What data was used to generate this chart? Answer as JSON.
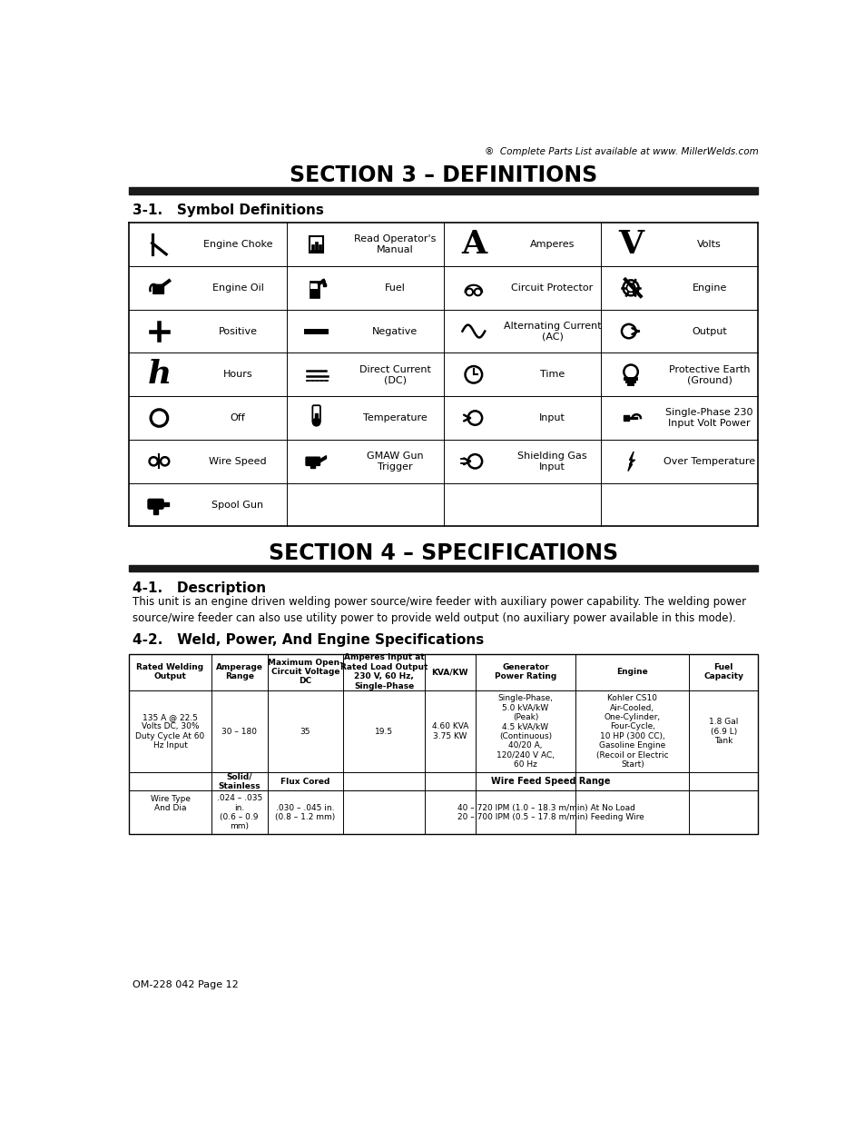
{
  "header_note": "®  Complete Parts List available at www. MillerWelds.com",
  "section3_title": "SECTION 3 – DEFINITIONS",
  "subsection31": "3-1.   Symbol Definitions",
  "section4_title": "SECTION 4 – SPECIFICATIONS",
  "subsection41": "4-1.   Description",
  "description_text": "This unit is an engine driven welding power source/wire feeder with auxiliary power capability. The welding power\nsource/wire feeder can also use utility power to provide weld output (no auxiliary power available in this mode).",
  "subsection42": "4-2.   Weld, Power, And Engine Specifications",
  "spec_headers": [
    "Rated Welding\nOutput",
    "Amperage\nRange",
    "Maximum Open-\nCircuit Voltage\nDC",
    "Amperes Input at\nRated Load Output\n230 V, 60 Hz,\nSingle-Phase",
    "KVA/KW",
    "Generator\nPower Rating",
    "Engine",
    "Fuel\nCapacity"
  ],
  "spec_row1": [
    "135 A @ 22.5\nVolts DC, 30%\nDuty Cycle At 60\nHz Input",
    "30 – 180",
    "35",
    "19.5",
    "4.60 KVA\n3.75 KW",
    "Single-Phase,\n5.0 kVA/kW\n(Peak)\n4.5 kVA/kW\n(Continuous)\n40/20 A,\n120/240 V AC,\n60 Hz",
    "Kohler CS10\nAir-Cooled,\nOne-Cylinder,\nFour-Cycle,\n10 HP (300 CC),\nGasoline Engine\n(Recoil or Electric\nStart)",
    "1.8 Gal\n(6.9 L)\nTank"
  ],
  "wire_type_label": "Wire Type\nAnd Dia",
  "wire_solid_label": "Solid/\nStainless",
  "wire_flux_label": "Flux Cored",
  "wire_feed_label": "Wire Feed Speed Range",
  "wire_solid_dia": ".024 – .035\nin.\n(0.6 – 0.9\nmm)",
  "wire_flux_dia": ".030 – .045 in.\n(0.8 – 1.2 mm)",
  "wire_feed_range": "40 – 720 IPM (1.0 – 18.3 m/min) At No Load\n20 – 700 IPM (0.5 – 17.8 m/min) Feeding Wire",
  "footer": "OM-228 042 Page 12",
  "bg_color": "#ffffff",
  "section_bar_color": "#1a1a1a"
}
